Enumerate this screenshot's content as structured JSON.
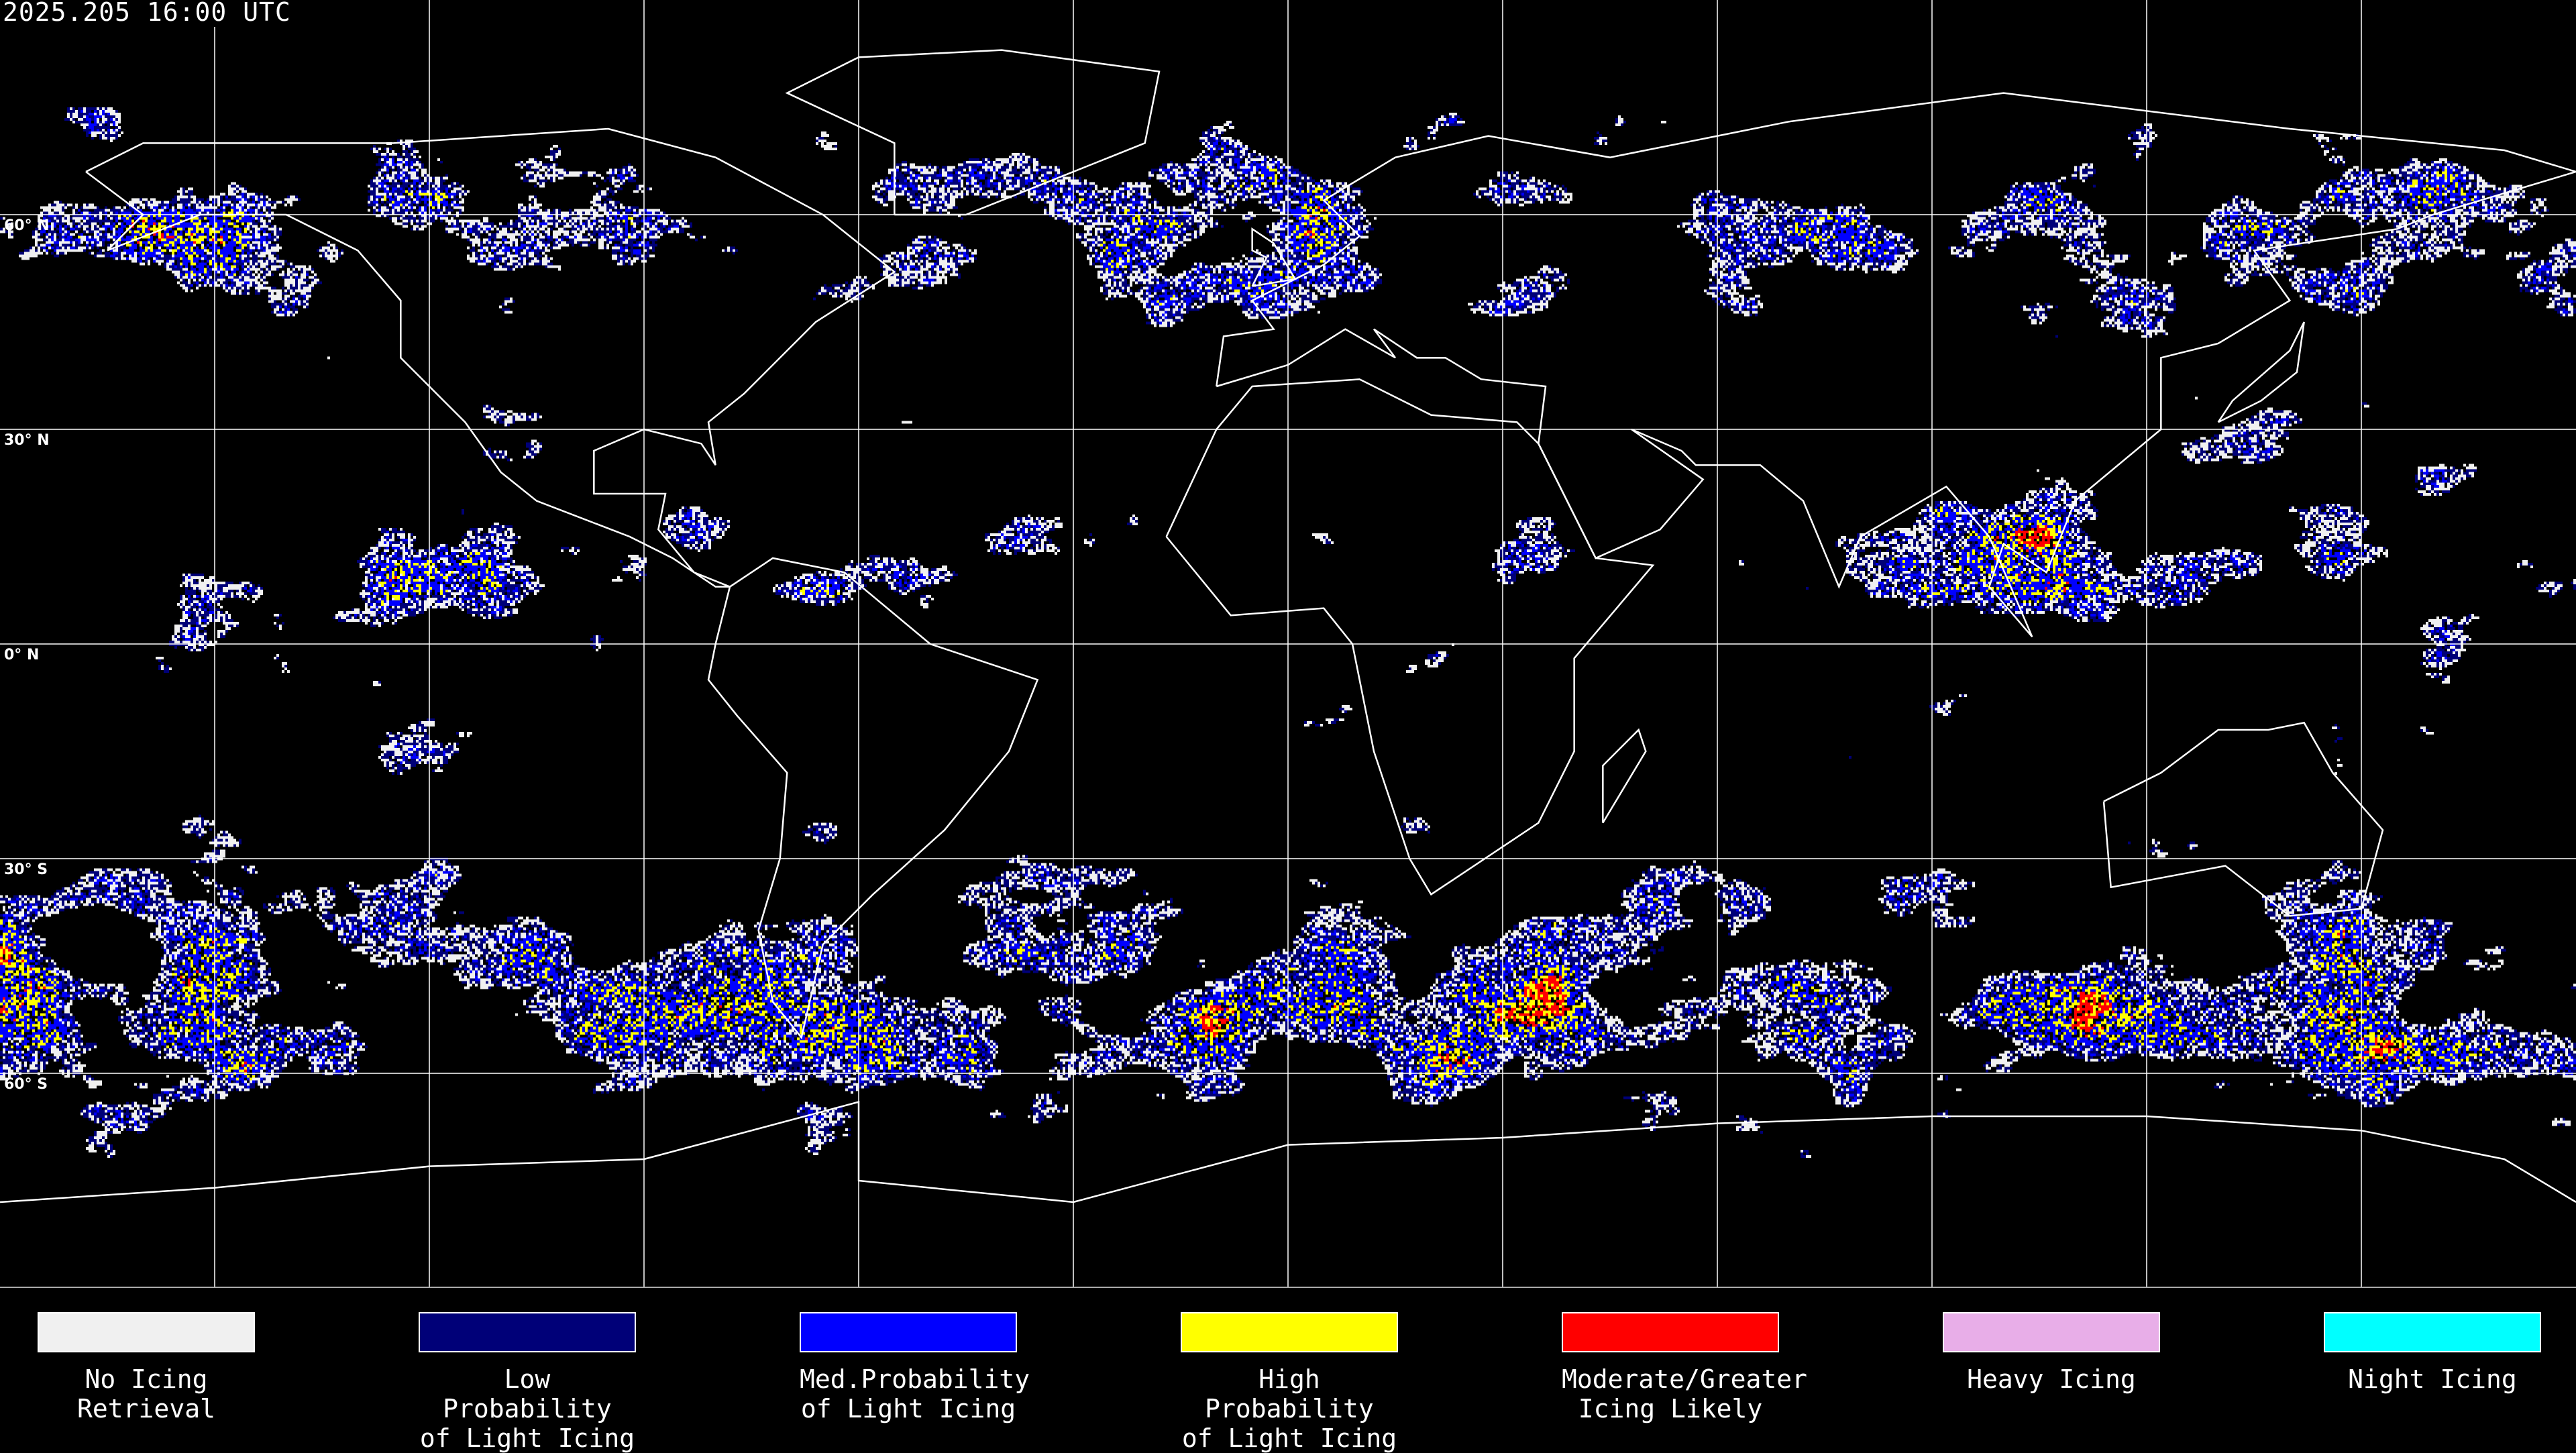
{
  "header": {
    "timestamp": "2025.205 16:00 UTC"
  },
  "map": {
    "projection": "equirectangular",
    "lon_range": [
      -180,
      180
    ],
    "lat_range": [
      -90,
      90
    ],
    "meridian_spacing_deg": 30,
    "lat_labels": [
      {
        "lat": 60,
        "label": "60° N"
      },
      {
        "lat": 30,
        "label": "30° N"
      },
      {
        "lat": 0,
        "label": "0° N"
      },
      {
        "lat": -30,
        "label": "30° S"
      },
      {
        "lat": -60,
        "label": "60° S"
      }
    ],
    "grid_color": "#ffffff",
    "coastline_color": "#ffffff",
    "background": "#000000"
  },
  "legend": {
    "items": [
      {
        "label": "No Icing\nRetrieval",
        "color": "#f0f0f0"
      },
      {
        "label": "Low Probability\nof Light Icing",
        "color": "#000078"
      },
      {
        "label": "Med.Probability\nof Light Icing",
        "color": "#0000ff"
      },
      {
        "label": "High Probability\nof Light Icing",
        "color": "#ffff00"
      },
      {
        "label": "Moderate/Greater\nIcing Likely",
        "color": "#ff0000"
      },
      {
        "label": "Heavy Icing",
        "color": "#e8aee8"
      },
      {
        "label": "Night Icing",
        "color": "#00ffff"
      }
    ]
  }
}
